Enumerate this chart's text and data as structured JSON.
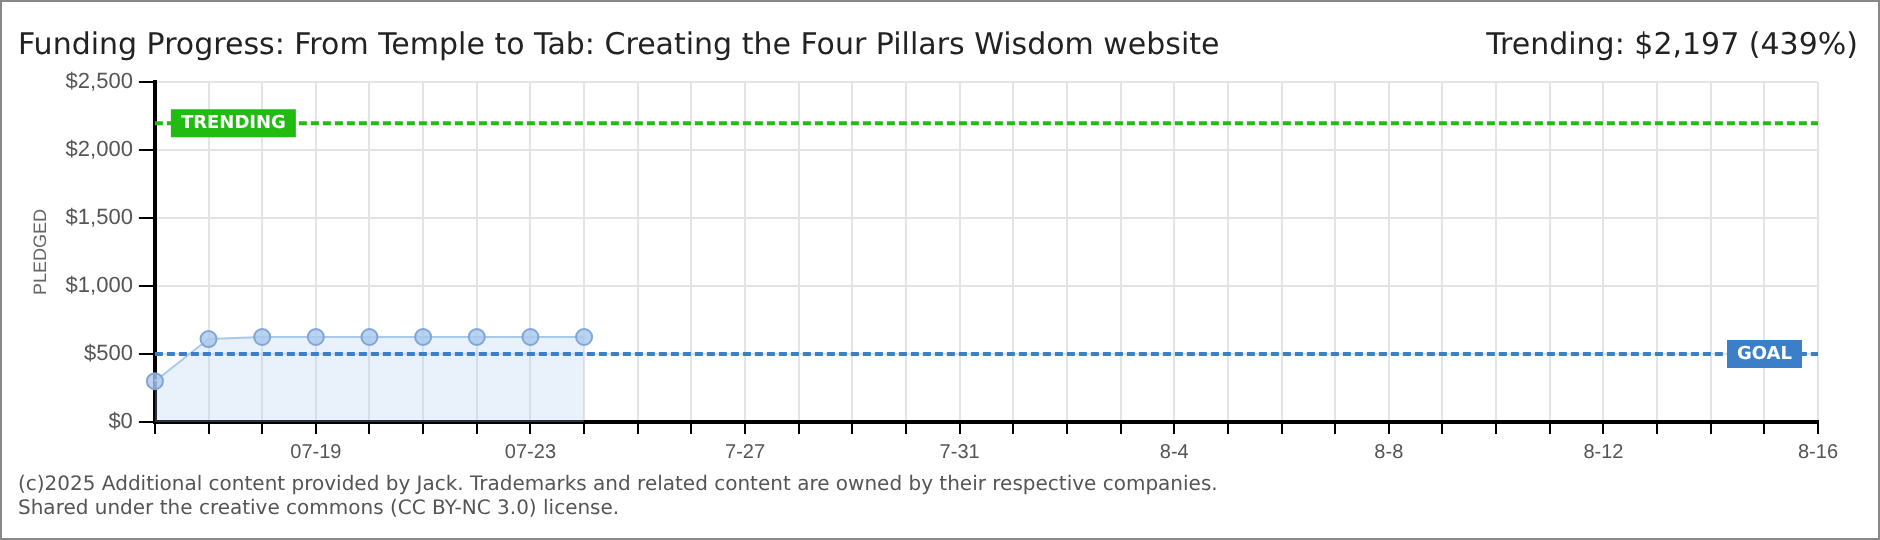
{
  "chart_data": {
    "type": "area",
    "title": "Funding Progress: From Temple to Tab: Creating the Four Pillars Wisdom website",
    "subtitle": "Trending:  $2,197 (439%)",
    "ylabel": "PLEDGED",
    "categories": [
      null,
      null,
      null,
      "07-19",
      null,
      null,
      null,
      "07-23",
      null,
      null,
      null,
      "7-27",
      null,
      null,
      null,
      "7-31",
      null,
      null,
      null,
      "8-4",
      null,
      null,
      null,
      "8-8",
      null,
      null,
      null,
      "8-12",
      null,
      null,
      null,
      "8-16"
    ],
    "series": [
      {
        "color": "#a8c8ec",
        "values": [
          300,
          610,
          625,
          625,
          625,
          625,
          625,
          625,
          625,
          null,
          null,
          null,
          null,
          null,
          null,
          null,
          null,
          null,
          null,
          null,
          null,
          null,
          null,
          null,
          null,
          null,
          null,
          null,
          null,
          null,
          null,
          null
        ]
      }
    ],
    "ylim": [
      0,
      2500
    ],
    "yticks": [
      {
        "value": 0,
        "label": "$0"
      },
      {
        "value": 500,
        "label": "$500"
      },
      {
        "value": 1000,
        "label": "$1,000"
      },
      {
        "value": 1500,
        "label": "$1,500"
      },
      {
        "value": 2000,
        "label": "$2,000"
      },
      {
        "value": 2500,
        "label": "$2,500"
      }
    ],
    "ref_lines": [
      {
        "axis": "y",
        "value": 2197,
        "label": "TRENDING",
        "color": "#22bb11",
        "line_style": "dashed"
      },
      {
        "axis": "y",
        "value": 500,
        "label": "GOAL",
        "color": "#3a7fc8",
        "line_style": "dashed"
      }
    ],
    "grid": true,
    "legend": false,
    "marker": "circle",
    "annotations": [
      "(c)2025 Additional content provided by Jack. Trademarks and related content are owned by their respective companies.",
      "Shared under the creative commons (CC BY-NC 3.0) license."
    ]
  }
}
